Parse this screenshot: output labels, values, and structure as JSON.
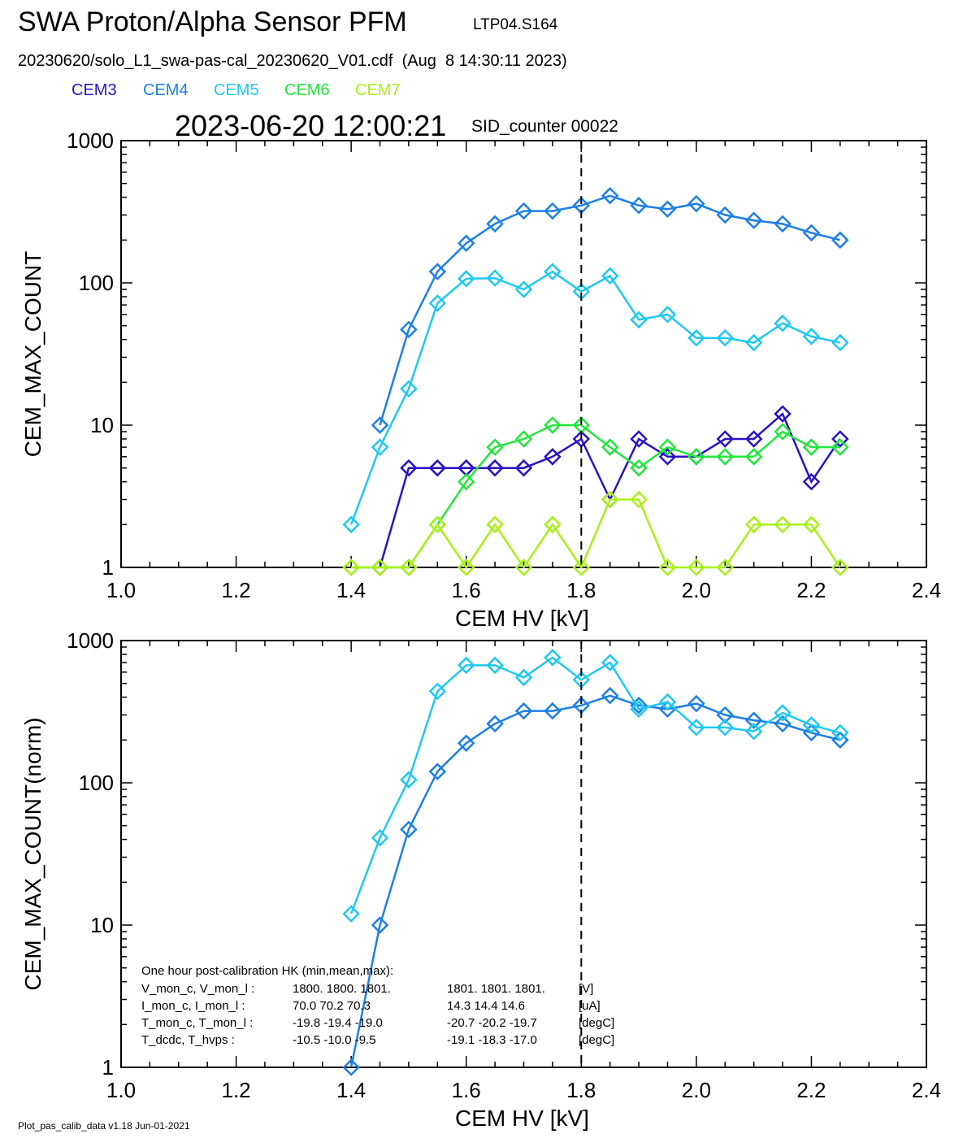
{
  "header": {
    "title": "SWA Proton/Alpha Sensor PFM",
    "subtitle": "LTP04.S164",
    "file_line": "20230620/solo_L1_swa-pas-cal_20230620_V01.cdf  (Aug  8 14:30:11 2023)",
    "timestamp": "2023-06-20 12:00:21",
    "sid_counter": "SID_counter 00022"
  },
  "legend": [
    {
      "name": "CEM3",
      "color": "#2a12c8"
    },
    {
      "name": "CEM4",
      "color": "#1d7fe6"
    },
    {
      "name": "CEM5",
      "color": "#1fc8f0"
    },
    {
      "name": "CEM6",
      "color": "#22e63a"
    },
    {
      "name": "CEM7",
      "color": "#a8f01a"
    }
  ],
  "footer": "Plot_pas_calib_data v1.18 Jun-01-2021",
  "hk": {
    "heading": "One hour post-calibration HK (min,mean,max):",
    "rows": [
      {
        "label": "V_mon_c, V_mon_l :",
        "left": "1800.  1800.  1801.",
        "right": "1801.  1801.  1801.",
        "unit": "[V]"
      },
      {
        "label": "I_mon_c,  I_mon_l :",
        "left": "70.0   70.2   70.3",
        "right": "14.3   14.4   14.6",
        "unit": "[uA]"
      },
      {
        "label": "T_mon_c, T_mon_l :",
        "left": "-19.8  -19.4  -19.0",
        "right": "-20.7  -20.2  -19.7",
        "unit": "[degC]"
      },
      {
        "label": "T_dcdc,    T_hvps :",
        "left": "-10.5  -10.0   -9.5",
        "right": "-19.1  -18.3  -17.0",
        "unit": "[degC]"
      }
    ]
  },
  "chart_data": [
    {
      "type": "line",
      "title": "",
      "xlabel": "CEM HV [kV]",
      "ylabel": "CEM_MAX_COUNT",
      "xlim": [
        1.0,
        2.4
      ],
      "ylim": [
        1,
        1000
      ],
      "yscale": "log",
      "xticks": [
        "1.0",
        "1.2",
        "1.4",
        "1.6",
        "1.8",
        "2.0",
        "2.2",
        "2.4"
      ],
      "yticks": [
        "1",
        "10",
        "100",
        "1000"
      ],
      "marker": "diamond",
      "vline": 1.8,
      "series": [
        {
          "name": "CEM3",
          "color": "#2a12c8",
          "x": [
            1.45,
            1.5,
            1.55,
            1.6,
            1.65,
            1.7,
            1.75,
            1.8,
            1.85,
            1.9,
            1.95,
            2.0,
            2.05,
            2.1,
            2.15,
            2.2,
            2.25
          ],
          "y": [
            1,
            5,
            5,
            5,
            5,
            5,
            6,
            8,
            3,
            8,
            6,
            6,
            8,
            8,
            12,
            4,
            8
          ]
        },
        {
          "name": "CEM4",
          "color": "#1d7fe6",
          "x": [
            1.45,
            1.5,
            1.55,
            1.6,
            1.65,
            1.7,
            1.75,
            1.8,
            1.85,
            1.9,
            1.95,
            2.0,
            2.05,
            2.1,
            2.15,
            2.2,
            2.25
          ],
          "y": [
            10,
            47,
            120,
            190,
            260,
            320,
            320,
            350,
            410,
            350,
            330,
            360,
            300,
            275,
            260,
            225,
            200
          ]
        },
        {
          "name": "CEM5",
          "color": "#1fc8f0",
          "x": [
            1.4,
            1.45,
            1.5,
            1.55,
            1.6,
            1.65,
            1.7,
            1.75,
            1.8,
            1.85,
            1.9,
            1.95,
            2.0,
            2.05,
            2.1,
            2.15,
            2.2,
            2.25
          ],
          "y": [
            2,
            7,
            18,
            72,
            107,
            108,
            90,
            120,
            87,
            112,
            55,
            60,
            41,
            41,
            38,
            52,
            42,
            38
          ]
        },
        {
          "name": "CEM6",
          "color": "#22e63a",
          "x": [
            1.4,
            1.45,
            1.5,
            1.55,
            1.6,
            1.65,
            1.7,
            1.75,
            1.8,
            1.85,
            1.9,
            1.95,
            2.0,
            2.05,
            2.1,
            2.15,
            2.2,
            2.25
          ],
          "y": [
            1,
            1,
            1,
            2,
            4,
            7,
            8,
            10,
            10,
            7,
            5,
            7,
            6,
            6,
            6,
            9,
            7,
            7
          ]
        },
        {
          "name": "CEM7",
          "color": "#a8f01a",
          "x": [
            1.4,
            1.45,
            1.5,
            1.55,
            1.6,
            1.65,
            1.7,
            1.75,
            1.8,
            1.85,
            1.9,
            1.95,
            2.0,
            2.05,
            2.1,
            2.15,
            2.2,
            2.25
          ],
          "y": [
            1,
            1,
            1,
            2,
            1,
            2,
            1,
            2,
            1,
            3,
            3,
            1,
            1,
            1,
            2,
            2,
            2,
            1
          ]
        }
      ]
    },
    {
      "type": "line",
      "title": "",
      "xlabel": "CEM HV [kV]",
      "ylabel": "CEM_MAX_COUNT(norm)",
      "xlim": [
        1.0,
        2.4
      ],
      "ylim": [
        1,
        1000
      ],
      "yscale": "log",
      "xticks": [
        "1.0",
        "1.2",
        "1.4",
        "1.6",
        "1.8",
        "2.0",
        "2.2",
        "2.4"
      ],
      "yticks": [
        "1",
        "10",
        "100",
        "1000"
      ],
      "marker": "diamond",
      "vline": 1.8,
      "series": [
        {
          "name": "CEM4",
          "color": "#1d7fe6",
          "x": [
            1.4,
            1.45,
            1.5,
            1.55,
            1.6,
            1.65,
            1.7,
            1.75,
            1.8,
            1.85,
            1.9,
            1.95,
            2.0,
            2.05,
            2.1,
            2.15,
            2.2,
            2.25
          ],
          "y": [
            1,
            10,
            47,
            120,
            190,
            260,
            320,
            320,
            350,
            410,
            350,
            330,
            360,
            300,
            275,
            260,
            225,
            200
          ]
        },
        {
          "name": "CEM5",
          "color": "#1fc8f0",
          "x": [
            1.4,
            1.45,
            1.5,
            1.55,
            1.6,
            1.65,
            1.7,
            1.75,
            1.8,
            1.85,
            1.9,
            1.95,
            2.0,
            2.05,
            2.1,
            2.15,
            2.2,
            2.25
          ],
          "y": [
            12,
            41,
            105,
            440,
            670,
            670,
            550,
            760,
            530,
            700,
            330,
            370,
            245,
            245,
            230,
            310,
            255,
            225
          ]
        }
      ]
    }
  ]
}
